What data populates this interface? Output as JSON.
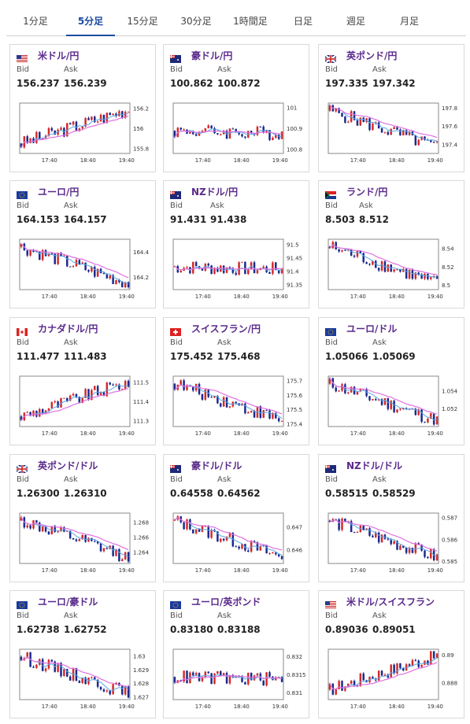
{
  "tabs": [
    "1分足",
    "5分足",
    "15分足",
    "30分足",
    "1時間足",
    "日足",
    "週足",
    "月足"
  ],
  "active_tab": "5分足",
  "labels": {
    "bid": "Bid",
    "ask": "Ask"
  },
  "colors": {
    "up": "#d42a2a",
    "down": "#1a2a8c",
    "ma_short": "#5aa8e8",
    "ma_long": "#e070e0",
    "pair_name": "#5a2a8a",
    "active_tab": "#1a4aa0"
  },
  "cards": [
    {
      "name": "米ドル/円",
      "flag": "us-flag-icon",
      "bid": "156.237",
      "ask": "156.239",
      "x_ticks": [
        "17:40",
        "18:40",
        "19:40"
      ],
      "y_ticks": [
        "156.2",
        "156",
        "155.8"
      ]
    },
    {
      "name": "豪ドル/円",
      "flag": "au-flag-icon",
      "bid": "100.862",
      "ask": "100.872",
      "x_ticks": [
        "17:40",
        "18:40",
        "19:40"
      ],
      "y_ticks": [
        "101",
        "100.9",
        "100.8"
      ]
    },
    {
      "name": "英ポンド/円",
      "flag": "gb-flag-icon",
      "bid": "197.335",
      "ask": "197.342",
      "x_ticks": [
        "17:40",
        "18:40",
        "19:40"
      ],
      "y_ticks": [
        "197.8",
        "197.6",
        "197.4"
      ]
    },
    {
      "name": "ユーロ/円",
      "flag": "eu-flag-icon",
      "bid": "164.153",
      "ask": "164.157",
      "x_ticks": [
        "17:40",
        "18:40",
        "19:40"
      ],
      "y_ticks": [
        "164.4",
        "164.2"
      ]
    },
    {
      "name": "NZドル/円",
      "flag": "nz-flag-icon",
      "bid": "91.431",
      "ask": "91.438",
      "x_ticks": [
        "17:40",
        "18:40",
        "19:40"
      ],
      "y_ticks": [
        "91.5",
        "91.45",
        "91.4",
        "91.35"
      ]
    },
    {
      "name": "ランド/円",
      "flag": "za-flag-icon",
      "bid": "8.503",
      "ask": "8.512",
      "x_ticks": [
        "17:40",
        "18:40",
        "19:40"
      ],
      "y_ticks": [
        "8.54",
        "8.52",
        "8.5"
      ]
    },
    {
      "name": "カナダドル/円",
      "flag": "ca-flag-icon",
      "bid": "111.477",
      "ask": "111.483",
      "x_ticks": [
        "17:40",
        "18:40",
        "19:40"
      ],
      "y_ticks": [
        "111.5",
        "111.4",
        "111.3"
      ]
    },
    {
      "name": "スイスフラン/円",
      "flag": "ch-flag-icon",
      "bid": "175.452",
      "ask": "175.468",
      "x_ticks": [
        "17:40",
        "18:40",
        "19:40"
      ],
      "y_ticks": [
        "175.7",
        "175.6",
        "175.5",
        "175.4"
      ]
    },
    {
      "name": "ユーロ/ドル",
      "flag": "eu-flag-icon",
      "bid": "1.05066",
      "ask": "1.05069",
      "x_ticks": [
        "17:40",
        "18:40",
        "19:40"
      ],
      "y_ticks": [
        "1.054",
        "1.052"
      ]
    },
    {
      "name": "英ポンド/ドル",
      "flag": "gb-flag-icon",
      "bid": "1.26300",
      "ask": "1.26310",
      "x_ticks": [
        "17:40",
        "18:40",
        "19:40"
      ],
      "y_ticks": [
        "1.268",
        "1.266",
        "1.264"
      ]
    },
    {
      "name": "豪ドル/ドル",
      "flag": "au-flag-icon",
      "bid": "0.64558",
      "ask": "0.64562",
      "x_ticks": [
        "17:40",
        "18:40",
        "19:40"
      ],
      "y_ticks": [
        "0.647",
        "0.646"
      ]
    },
    {
      "name": "NZドル/ドル",
      "flag": "nz-flag-icon",
      "bid": "0.58515",
      "ask": "0.58529",
      "x_ticks": [
        "17:40",
        "18:40",
        "19:40"
      ],
      "y_ticks": [
        "0.587",
        "0.586",
        "0.585"
      ]
    },
    {
      "name": "ユーロ/豪ドル",
      "flag": "eu-flag-icon",
      "bid": "1.62738",
      "ask": "1.62752",
      "x_ticks": [
        "17:40",
        "18:40",
        "19:40"
      ],
      "y_ticks": [
        "1.63",
        "1.629",
        "1.628",
        "1.627"
      ]
    },
    {
      "name": "ユーロ/英ポンド",
      "flag": "eu-flag-icon",
      "bid": "0.83180",
      "ask": "0.83188",
      "x_ticks": [
        "17:40",
        "18:40",
        "19:40"
      ],
      "y_ticks": [
        "0.832",
        "0.8315",
        "0.831"
      ]
    },
    {
      "name": "米ドル/スイスフラン",
      "flag": "us-flag-icon",
      "bid": "0.89036",
      "ask": "0.89051",
      "x_ticks": [
        "17:40",
        "18:40",
        "19:40"
      ],
      "y_ticks": [
        "0.89",
        "0.888"
      ]
    }
  ],
  "chart_data": [
    {
      "type": "candlestick",
      "pair": "米ドル/円",
      "ylim": [
        155.75,
        156.25
      ],
      "trend": "up"
    },
    {
      "type": "candlestick",
      "pair": "豪ドル/円",
      "ylim": [
        100.78,
        101.02
      ],
      "trend": "flat"
    },
    {
      "type": "candlestick",
      "pair": "英ポンド/円",
      "ylim": [
        197.3,
        197.85
      ],
      "trend": "down"
    },
    {
      "type": "candlestick",
      "pair": "ユーロ/円",
      "ylim": [
        164.1,
        164.5
      ],
      "trend": "down"
    },
    {
      "type": "candlestick",
      "pair": "NZドル/円",
      "ylim": [
        91.33,
        91.52
      ],
      "trend": "flat"
    },
    {
      "type": "candlestick",
      "pair": "ランド/円",
      "ylim": [
        8.495,
        8.55
      ],
      "trend": "down"
    },
    {
      "type": "candlestick",
      "pair": "カナダドル/円",
      "ylim": [
        111.27,
        111.53
      ],
      "trend": "up"
    },
    {
      "type": "candlestick",
      "pair": "スイスフラン/円",
      "ylim": [
        175.38,
        175.73
      ],
      "trend": "down"
    },
    {
      "type": "candlestick",
      "pair": "ユーロ/ドル",
      "ylim": [
        1.05,
        1.0556
      ],
      "trend": "down"
    },
    {
      "type": "candlestick",
      "pair": "英ポンド/ドル",
      "ylim": [
        1.2625,
        1.2692
      ],
      "trend": "down"
    },
    {
      "type": "candlestick",
      "pair": "豪ドル/ドル",
      "ylim": [
        0.6454,
        0.6476
      ],
      "trend": "down"
    },
    {
      "type": "candlestick",
      "pair": "NZドル/ドル",
      "ylim": [
        0.5849,
        0.5872
      ],
      "trend": "down"
    },
    {
      "type": "candlestick",
      "pair": "ユーロ/豪ドル",
      "ylim": [
        1.6268,
        1.6305
      ],
      "trend": "down"
    },
    {
      "type": "candlestick",
      "pair": "ユーロ/英ポンド",
      "ylim": [
        0.8308,
        0.8322
      ],
      "trend": "flat"
    },
    {
      "type": "candlestick",
      "pair": "米ドル/スイスフラン",
      "ylim": [
        0.8868,
        0.8904
      ],
      "trend": "up"
    }
  ]
}
